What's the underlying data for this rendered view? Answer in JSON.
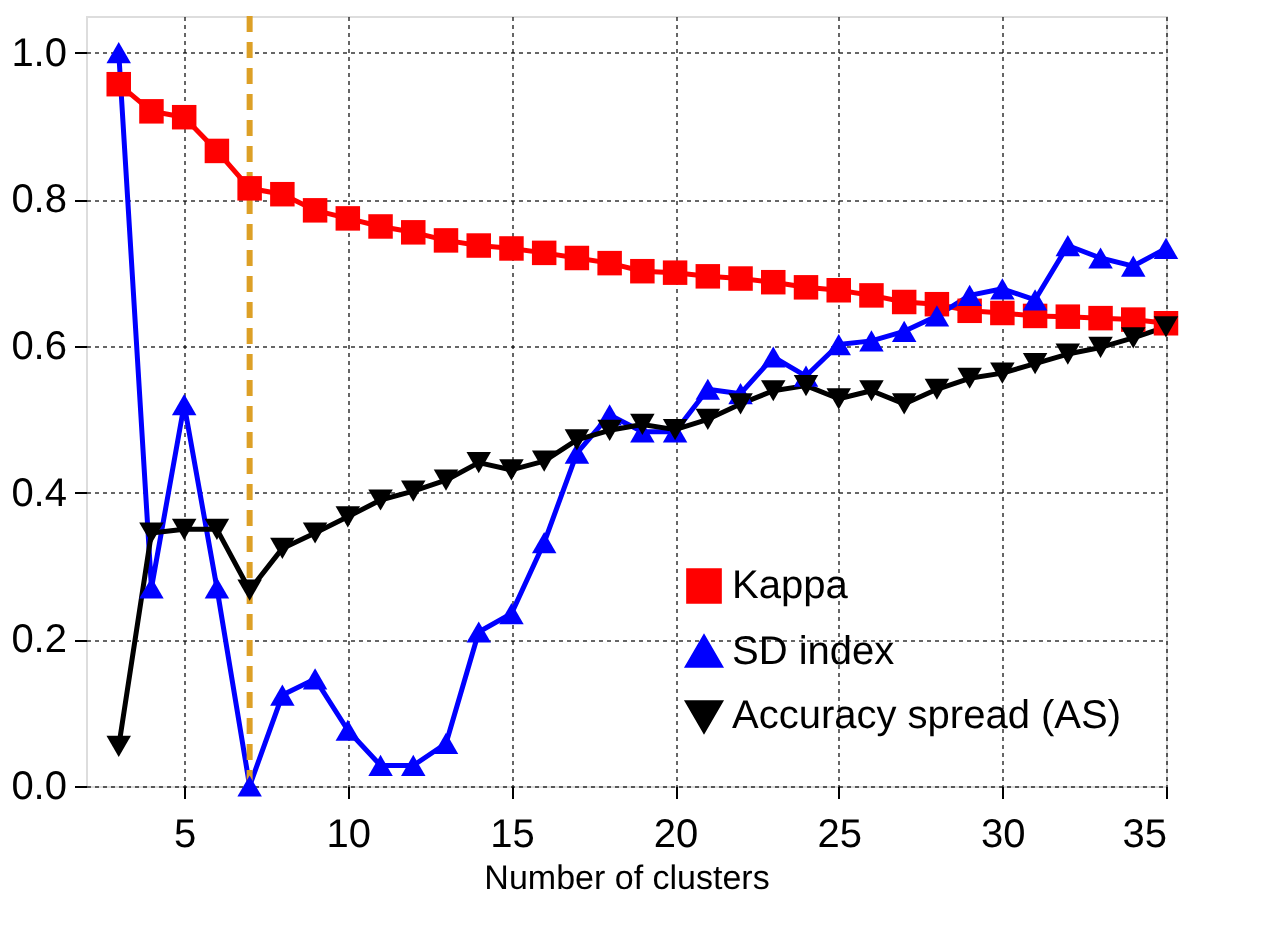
{
  "chart_data": {
    "type": "line",
    "xlabel": "Number of clusters",
    "x": [
      3,
      4,
      5,
      6,
      7,
      8,
      9,
      10,
      11,
      12,
      13,
      14,
      15,
      16,
      17,
      18,
      19,
      20,
      21,
      22,
      23,
      24,
      25,
      26,
      27,
      28,
      29,
      30,
      31,
      32,
      33,
      34,
      35
    ],
    "series": [
      {
        "name": "Kappa",
        "color": "#ff0000",
        "marker": "square",
        "values": [
          0.957,
          0.92,
          0.912,
          0.866,
          0.815,
          0.807,
          0.785,
          0.774,
          0.763,
          0.755,
          0.744,
          0.737,
          0.733,
          0.727,
          0.72,
          0.713,
          0.702,
          0.7,
          0.695,
          0.692,
          0.687,
          0.68,
          0.676,
          0.669,
          0.66,
          0.657,
          0.648,
          0.645,
          0.641,
          0.64,
          0.638,
          0.636,
          0.631
        ]
      },
      {
        "name": "SD index",
        "color": "#0000ff",
        "marker": "triangle",
        "values": [
          1.0,
          0.27,
          0.52,
          0.27,
          0.0,
          0.124,
          0.146,
          0.076,
          0.028,
          0.028,
          0.058,
          0.21,
          0.235,
          0.332,
          0.454,
          0.506,
          0.483,
          0.483,
          0.541,
          0.535,
          0.585,
          0.559,
          0.602,
          0.607,
          0.62,
          0.641,
          0.669,
          0.678,
          0.663,
          0.737,
          0.72,
          0.709,
          0.733
        ]
      },
      {
        "name": "Accuracy spread (AS)",
        "color": "#000000",
        "marker": "triangle-down",
        "values": [
          0.054,
          0.345,
          0.35,
          0.35,
          0.267,
          0.324,
          0.345,
          0.367,
          0.39,
          0.402,
          0.417,
          0.441,
          0.431,
          0.443,
          0.472,
          0.485,
          0.493,
          0.486,
          0.5,
          0.521,
          0.539,
          0.546,
          0.528,
          0.539,
          0.521,
          0.541,
          0.556,
          0.563,
          0.576,
          0.589,
          0.598,
          0.611,
          0.626
        ]
      }
    ],
    "xlim": [
      2,
      35
    ],
    "xticks": [
      5,
      10,
      15,
      20,
      25,
      30,
      35
    ],
    "ylim": [
      0,
      1.05
    ],
    "yticks": [
      {
        "value": 0,
        "label": "0.0"
      },
      {
        "value": 0.2,
        "label": "0.2"
      },
      {
        "value": 0.4,
        "label": "0.4"
      },
      {
        "value": 0.6,
        "label": "0.6"
      },
      {
        "value": 0.8,
        "label": "0.8"
      },
      {
        "value": 1.0,
        "label": "1.0"
      }
    ],
    "ref_lines": [
      {
        "axis": "x",
        "value": 7,
        "color": "#dda026",
        "line_style": "dashed"
      }
    ],
    "grid": true,
    "legend": "bottom right",
    "line_style": "solid"
  }
}
